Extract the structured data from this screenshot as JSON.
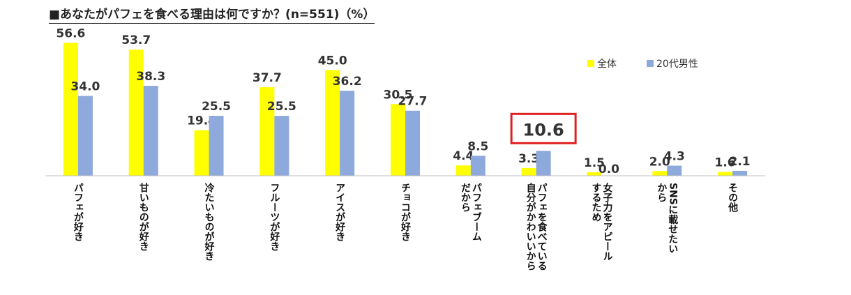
{
  "chart_data": {
    "type": "bar",
    "title": "■あなたがパフェを食べる理由は何ですか？(n=551)（%）",
    "categories": [
      "パフェが好き",
      "甘いものが好き",
      "冷たいものが好き",
      "フルーツが好き",
      "アイスが好き",
      "チョコが好き",
      "パフェブーム\nだから",
      "パフェを食べている\n自分がかわいいから",
      "女子力をアピール\nするため",
      "SNSに載せたい\nから",
      "その他"
    ],
    "series": [
      {
        "name": "全体",
        "color": "#FFFF00",
        "values": [
          56.6,
          53.7,
          19.4,
          37.7,
          45.0,
          30.5,
          4.4,
          3.3,
          1.5,
          2.0,
          1.6
        ]
      },
      {
        "name": "20代男性",
        "color": "#8EA9DB",
        "values": [
          34.0,
          38.3,
          25.5,
          25.5,
          36.2,
          27.7,
          8.5,
          10.6,
          0.0,
          4.3,
          2.1
        ]
      }
    ],
    "ylim": [
      0,
      60
    ],
    "highlight": {
      "series": 1,
      "category": 7,
      "color": "#E02020"
    },
    "legend_position": "top-right",
    "grid": false
  }
}
